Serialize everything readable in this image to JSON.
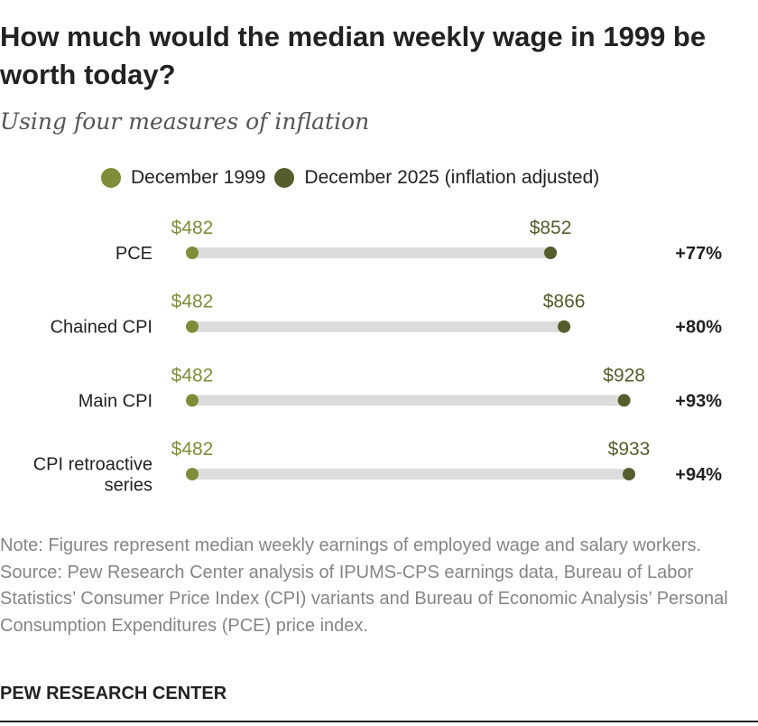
{
  "title": "How much would the median weekly wage in 1999 be worth today?",
  "subtitle": "Using four measures of inflation",
  "legend": [
    {
      "label": "December 1999",
      "color": "#7f8d38"
    },
    {
      "label": "December 2025 (inflation adjusted)",
      "color": "#545e2c"
    }
  ],
  "chart_data": {
    "type": "dot-range",
    "categories": [
      [
        "PCE"
      ],
      [
        "Chained CPI"
      ],
      [
        "Main CPI"
      ],
      [
        "CPI retroactive",
        "series"
      ]
    ],
    "start_values": [
      482,
      482,
      482,
      482
    ],
    "end_values": [
      852,
      866,
      928,
      933
    ],
    "start_labels": [
      "$482",
      "$482",
      "$482",
      "$482"
    ],
    "end_labels": [
      "$852",
      "$866",
      "$928",
      "$933"
    ],
    "change_labels": [
      "+77%",
      "+80%",
      "+93%",
      "+94%"
    ],
    "colors": {
      "start": "#7f8d38",
      "end": "#545e2c",
      "bar": "#dcdcdc",
      "start_label": "#7f8d38",
      "end_label": "#545e2c"
    }
  },
  "note": "Note: Figures represent median weekly earnings of employed wage and salary workers.",
  "source": "Source: Pew Research Center analysis of IPUMS-CPS earnings data, Bureau of Labor Statistics’ Consumer Price Index (CPI) variants and Bureau of Economic Analysis’ Personal Consumption Expenditures (PCE) price index.",
  "brand": "PEW RESEARCH CENTER"
}
